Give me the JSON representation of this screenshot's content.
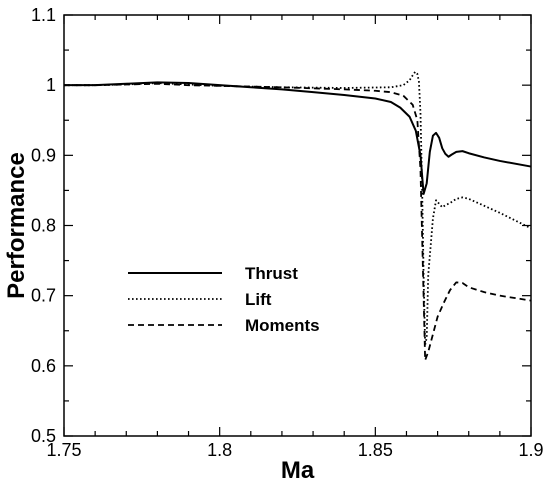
{
  "chart_data": {
    "type": "line",
    "xlabel": "Ma",
    "ylabel": "Performance",
    "xlim": [
      1.75,
      1.9
    ],
    "ylim": [
      0.5,
      1.1
    ],
    "xticks": [
      "1.75",
      "1.8",
      "1.85",
      "1.9"
    ],
    "yticks": [
      "0.5",
      "0.6",
      "0.7",
      "0.8",
      "0.9",
      "1",
      "1.1"
    ],
    "grid": false,
    "legend_position": "left-center",
    "series": [
      {
        "name": "Thrust",
        "style": "solid",
        "points": [
          [
            1.75,
            1.0
          ],
          [
            1.76,
            1.0
          ],
          [
            1.77,
            1.002
          ],
          [
            1.78,
            1.004
          ],
          [
            1.79,
            1.003
          ],
          [
            1.8,
            1.0
          ],
          [
            1.81,
            0.997
          ],
          [
            1.82,
            0.994
          ],
          [
            1.83,
            0.99
          ],
          [
            1.84,
            0.986
          ],
          [
            1.85,
            0.981
          ],
          [
            1.855,
            0.976
          ],
          [
            1.858,
            0.968
          ],
          [
            1.861,
            0.955
          ],
          [
            1.863,
            0.935
          ],
          [
            1.8645,
            0.9
          ],
          [
            1.8655,
            0.845
          ],
          [
            1.8665,
            0.86
          ],
          [
            1.8675,
            0.905
          ],
          [
            1.8685,
            0.928
          ],
          [
            1.8695,
            0.932
          ],
          [
            1.8705,
            0.925
          ],
          [
            1.8715,
            0.91
          ],
          [
            1.8725,
            0.902
          ],
          [
            1.8735,
            0.898
          ],
          [
            1.8745,
            0.901
          ],
          [
            1.876,
            0.905
          ],
          [
            1.878,
            0.906
          ],
          [
            1.88,
            0.903
          ],
          [
            1.885,
            0.897
          ],
          [
            1.89,
            0.892
          ],
          [
            1.9,
            0.884
          ]
        ]
      },
      {
        "name": "Lift",
        "style": "dotted",
        "points": [
          [
            1.75,
            1.0
          ],
          [
            1.76,
            1.0
          ],
          [
            1.77,
            1.001
          ],
          [
            1.78,
            1.003
          ],
          [
            1.79,
            1.001
          ],
          [
            1.8,
            0.999
          ],
          [
            1.82,
            0.997
          ],
          [
            1.84,
            0.996
          ],
          [
            1.855,
            0.997
          ],
          [
            1.859,
            1.0
          ],
          [
            1.861,
            1.007
          ],
          [
            1.862,
            1.014
          ],
          [
            1.8628,
            1.019
          ],
          [
            1.8635,
            1.016
          ],
          [
            1.864,
            1.005
          ],
          [
            1.8645,
            0.96
          ],
          [
            1.865,
            0.86
          ],
          [
            1.8655,
            0.73
          ],
          [
            1.866,
            0.63
          ],
          [
            1.8665,
            0.64
          ],
          [
            1.867,
            0.73
          ],
          [
            1.8685,
            0.81
          ],
          [
            1.8695,
            0.836
          ],
          [
            1.8705,
            0.831
          ],
          [
            1.8715,
            0.826
          ],
          [
            1.8725,
            0.829
          ],
          [
            1.874,
            0.832
          ],
          [
            1.876,
            0.838
          ],
          [
            1.878,
            0.84
          ],
          [
            1.88,
            0.838
          ],
          [
            1.885,
            0.828
          ],
          [
            1.89,
            0.818
          ],
          [
            1.9,
            0.796
          ]
        ]
      },
      {
        "name": "Moments",
        "style": "dashed",
        "points": [
          [
            1.75,
            1.0
          ],
          [
            1.76,
            1.0
          ],
          [
            1.77,
            1.001
          ],
          [
            1.78,
            1.002
          ],
          [
            1.79,
            1.0
          ],
          [
            1.8,
            0.999
          ],
          [
            1.82,
            0.997
          ],
          [
            1.84,
            0.994
          ],
          [
            1.85,
            0.992
          ],
          [
            1.855,
            0.99
          ],
          [
            1.859,
            0.985
          ],
          [
            1.862,
            0.972
          ],
          [
            1.8635,
            0.95
          ],
          [
            1.8645,
            0.88
          ],
          [
            1.8655,
            0.7
          ],
          [
            1.866,
            0.608
          ],
          [
            1.867,
            0.62
          ],
          [
            1.8685,
            0.645
          ],
          [
            1.87,
            0.67
          ],
          [
            1.872,
            0.69
          ],
          [
            1.874,
            0.708
          ],
          [
            1.876,
            0.719
          ],
          [
            1.878,
            0.718
          ],
          [
            1.88,
            0.712
          ],
          [
            1.885,
            0.705
          ],
          [
            1.89,
            0.7
          ],
          [
            1.9,
            0.693
          ]
        ]
      }
    ]
  }
}
